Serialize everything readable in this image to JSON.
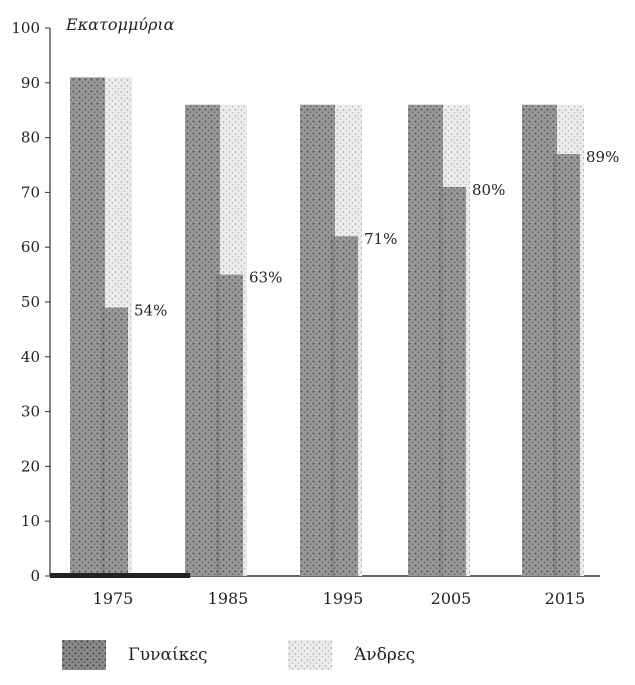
{
  "chart_data": {
    "type": "bar",
    "ylabel": "Εκατομμύρια",
    "ylim": [
      0,
      100
    ],
    "yticks": [
      0,
      10,
      20,
      30,
      40,
      50,
      60,
      70,
      80,
      90,
      100
    ],
    "categories": [
      "1975",
      "1985",
      "1995",
      "2005",
      "2015"
    ],
    "series": [
      {
        "name": "Γυναίκες",
        "values": [
          49,
          55,
          62,
          71,
          77
        ]
      },
      {
        "name": "Άνδρες",
        "values": [
          91,
          86,
          86,
          86,
          86
        ]
      }
    ],
    "annotations": [
      "54%",
      "63%",
      "71%",
      "80%",
      "89%"
    ],
    "legend_position": "bottom",
    "grid": false,
    "colors": {
      "women": "#6a6a6a",
      "men": "#e4e4e4",
      "axis": "#333333",
      "text": "#222222"
    }
  }
}
